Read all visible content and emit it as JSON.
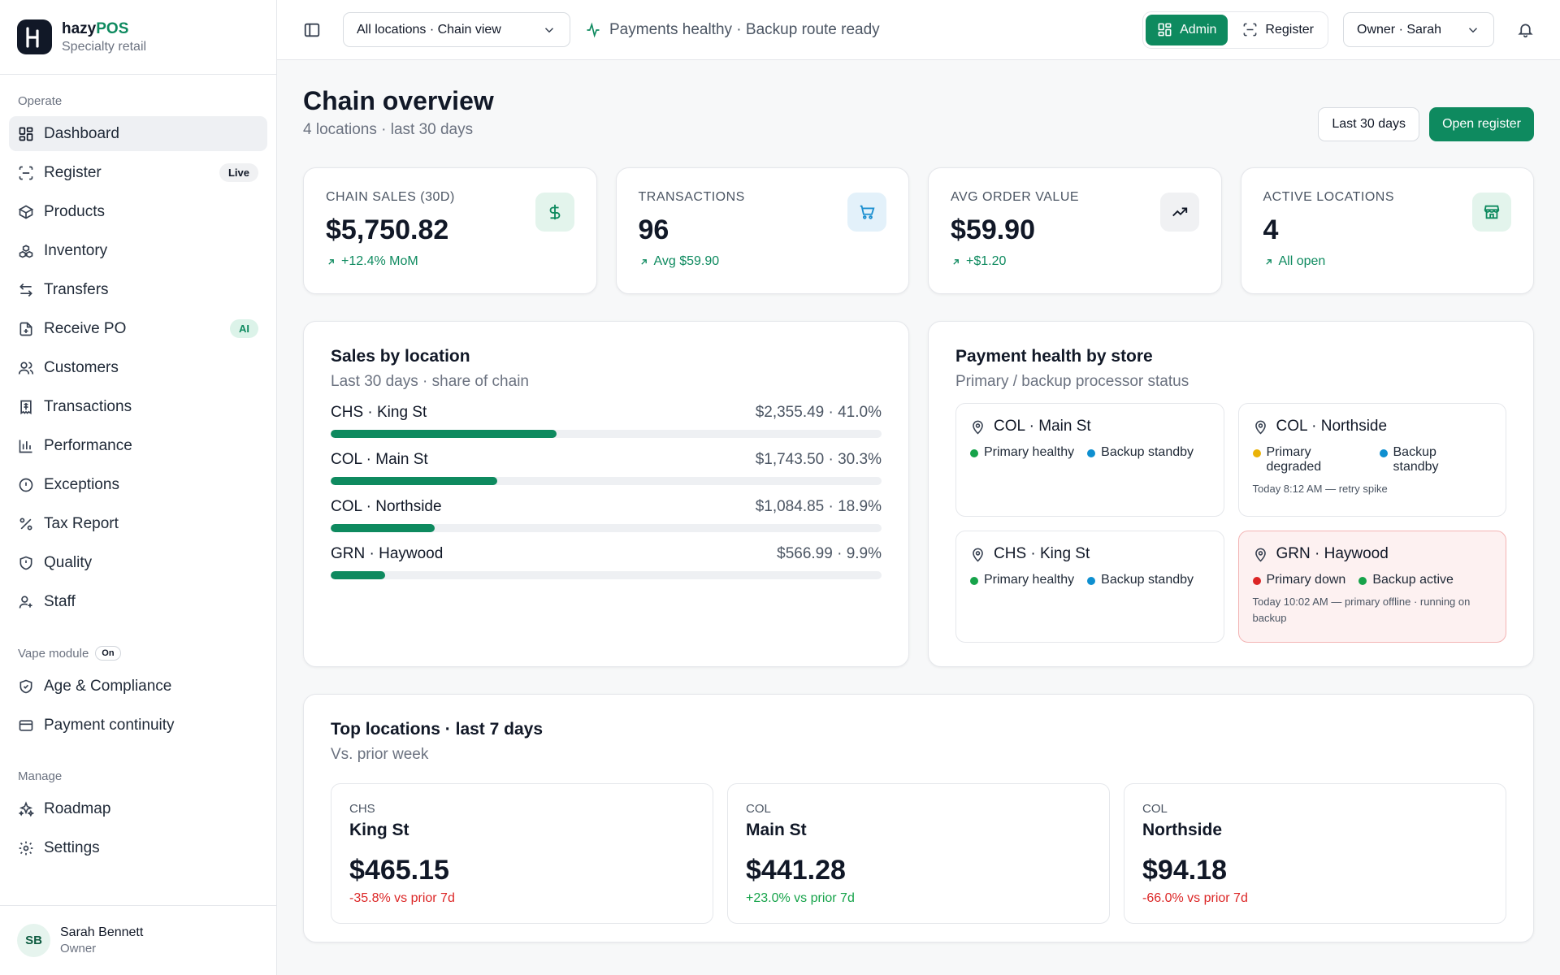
{
  "brand": {
    "name_main": "hazy",
    "name_accent": "POS",
    "subtitle": "Specialty retail"
  },
  "sidebar": {
    "sections": {
      "operate": "Operate",
      "vape": "Vape module",
      "vape_badge": "On",
      "manage": "Manage"
    },
    "operate_items": [
      {
        "label": "Dashboard",
        "icon": "dashboard-icon"
      },
      {
        "label": "Register",
        "icon": "register-icon",
        "badge": "Live"
      },
      {
        "label": "Products",
        "icon": "box-icon"
      },
      {
        "label": "Inventory",
        "icon": "boxes-icon"
      },
      {
        "label": "Transfers",
        "icon": "transfer-icon"
      },
      {
        "label": "Receive PO",
        "icon": "file-plus-icon",
        "badge": "AI"
      },
      {
        "label": "Customers",
        "icon": "users-icon"
      },
      {
        "label": "Transactions",
        "icon": "receipt-icon"
      },
      {
        "label": "Performance",
        "icon": "bar-chart-icon"
      },
      {
        "label": "Exceptions",
        "icon": "alert-circle-icon"
      },
      {
        "label": "Tax Report",
        "icon": "percent-icon"
      },
      {
        "label": "Quality",
        "icon": "shield-icon"
      },
      {
        "label": "Staff",
        "icon": "staff-icon"
      }
    ],
    "vape_items": [
      {
        "label": "Age & Compliance",
        "icon": "shield-check-icon"
      },
      {
        "label": "Payment continuity",
        "icon": "credit-card-icon"
      }
    ],
    "manage_items": [
      {
        "label": "Roadmap",
        "icon": "sparkles-icon"
      },
      {
        "label": "Settings",
        "icon": "gear-icon"
      }
    ],
    "user": {
      "initials": "SB",
      "name": "Sarah Bennett",
      "role": "Owner"
    }
  },
  "topbar": {
    "location_select": "All locations · Chain view",
    "status": "Payments healthy · Backup route ready",
    "mode_admin": "Admin",
    "mode_register": "Register",
    "user_select": "Owner · Sarah"
  },
  "page": {
    "title": "Chain overview",
    "subtitle": "4 locations · last 30 days",
    "range_button": "Last 30 days",
    "open_register_button": "Open register"
  },
  "kpis": [
    {
      "label": "CHAIN SALES (30D)",
      "value": "$5,750.82",
      "delta": "+12.4% MoM",
      "icon": "dollar-icon",
      "icon_bg": "#e3f4ec",
      "icon_color": "#0e8a5f"
    },
    {
      "label": "TRANSACTIONS",
      "value": "96",
      "delta": "Avg $59.90",
      "icon": "cart-icon",
      "icon_bg": "#e3f1fa",
      "icon_color": "#1c8fd0"
    },
    {
      "label": "AVG ORDER VALUE",
      "value": "$59.90",
      "delta": "+$1.20",
      "icon": "trending-up-icon",
      "icon_bg": "#f0f1f3",
      "icon_color": "#111827"
    },
    {
      "label": "ACTIVE LOCATIONS",
      "value": "4",
      "delta": "All open",
      "icon": "store-icon",
      "icon_bg": "#e3f4ec",
      "icon_color": "#0e8a5f"
    }
  ],
  "sales_by_location": {
    "title": "Sales by location",
    "subtitle": "Last 30 days · share of chain",
    "rows": [
      {
        "name": "CHS · King St",
        "value": "$2,355.49 · 41.0%",
        "share": 41.0
      },
      {
        "name": "COL · Main St",
        "value": "$1,743.50 · 30.3%",
        "share": 30.3
      },
      {
        "name": "COL · Northside",
        "value": "$1,084.85 · 18.9%",
        "share": 18.9
      },
      {
        "name": "GRN · Haywood",
        "value": "$566.99 · 9.9%",
        "share": 9.9
      }
    ]
  },
  "payment_health": {
    "title": "Payment health by store",
    "subtitle": "Primary / backup processor status",
    "stores": [
      {
        "name": "COL · Main St",
        "primary": "Primary healthy",
        "primary_color": "#16a34a",
        "backup": "Backup standby",
        "backup_color": "#0e8fd0",
        "note": ""
      },
      {
        "name": "COL · Northside",
        "primary": "Primary degraded",
        "primary_color": "#eab308",
        "backup": "Backup standby",
        "backup_color": "#0e8fd0",
        "note": "Today 8:12 AM — retry spike"
      },
      {
        "name": "CHS · King St",
        "primary": "Primary healthy",
        "primary_color": "#16a34a",
        "backup": "Backup standby",
        "backup_color": "#0e8fd0",
        "note": ""
      },
      {
        "name": "GRN · Haywood",
        "primary": "Primary down",
        "primary_color": "#dc2626",
        "backup": "Backup active",
        "backup_color": "#16a34a",
        "note": "Today 10:02 AM — primary offline · running on backup",
        "alert": true
      }
    ]
  },
  "top_locations": {
    "title": "Top locations · last 7 days",
    "subtitle": "Vs. prior week",
    "cards": [
      {
        "code": "CHS",
        "name": "King St",
        "amount": "$465.15",
        "delta": "-35.8% vs prior 7d",
        "positive": false
      },
      {
        "code": "COL",
        "name": "Main St",
        "amount": "$441.28",
        "delta": "+23.0% vs prior 7d",
        "positive": true
      },
      {
        "code": "COL",
        "name": "Northside",
        "amount": "$94.18",
        "delta": "-66.0% vs prior 7d",
        "positive": false
      }
    ]
  },
  "colors": {
    "accent": "#0e8a5f",
    "negative": "#dc2626",
    "positive": "#16a34a"
  }
}
